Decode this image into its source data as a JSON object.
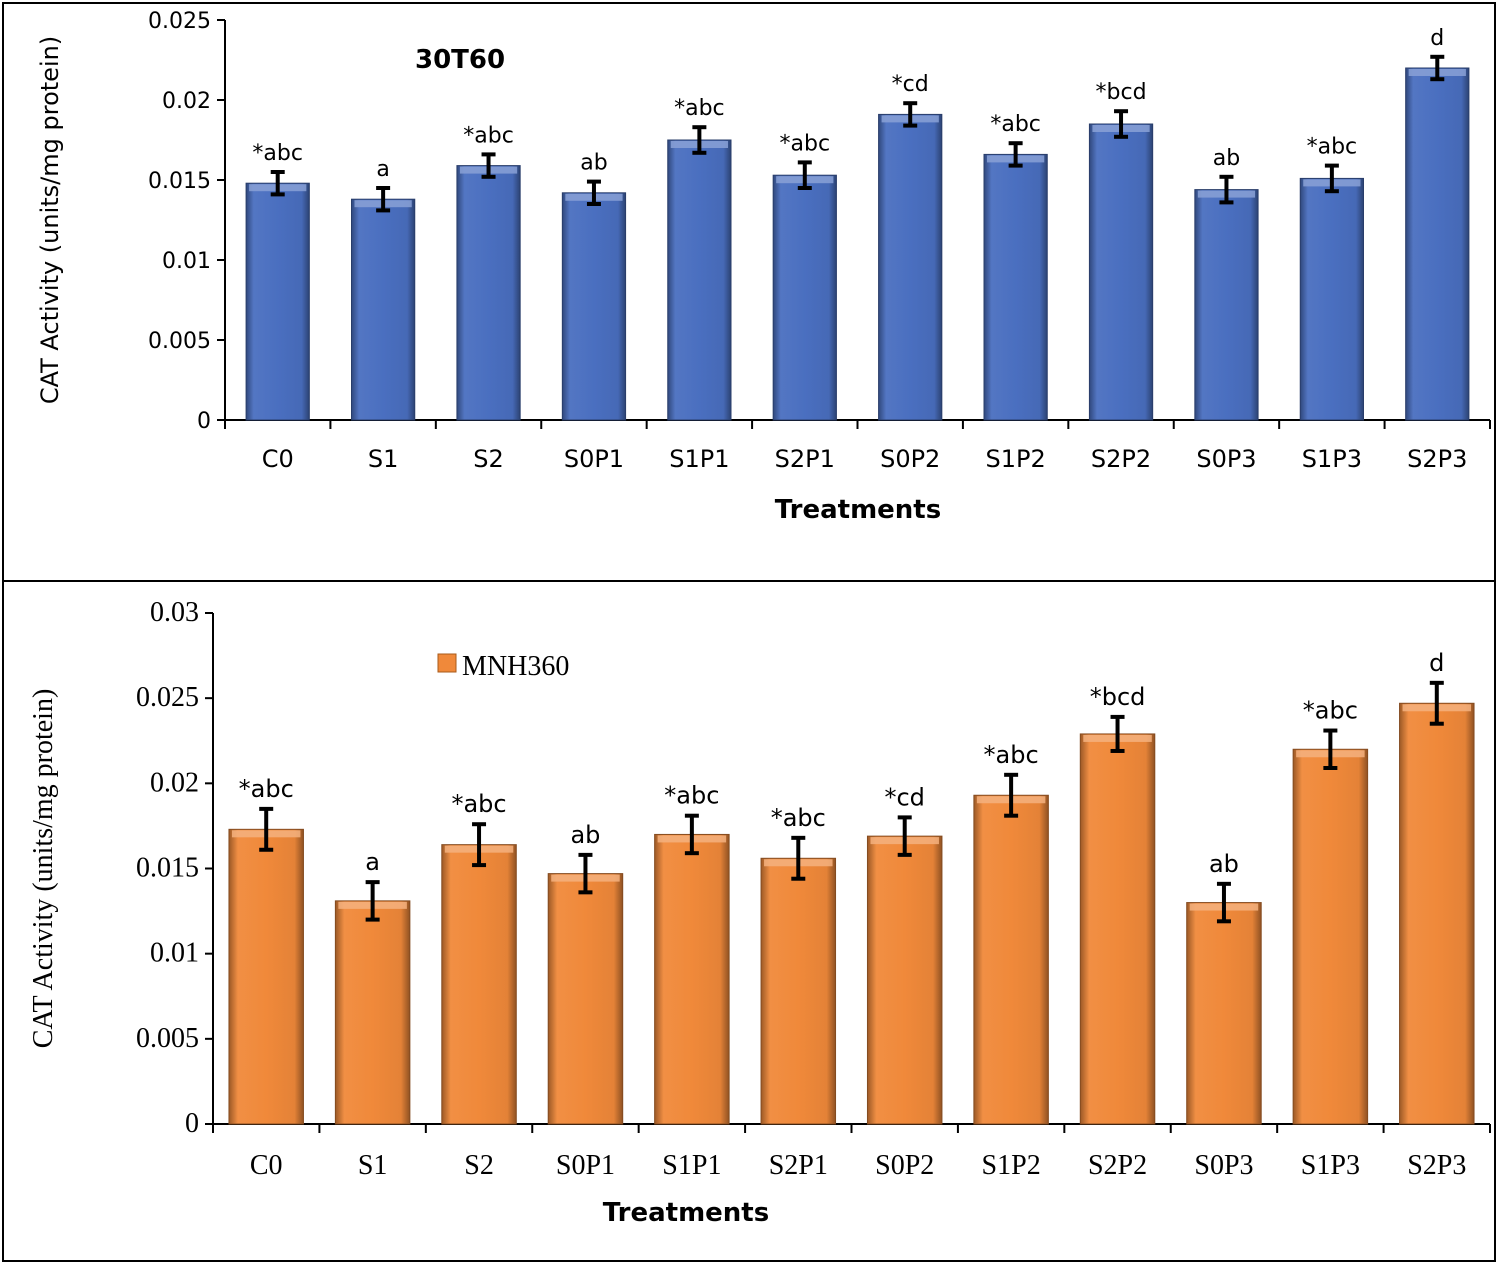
{
  "chart_data": [
    {
      "type": "bar",
      "title": "",
      "annotation": "30T60",
      "xlabel": "Treatments",
      "ylabel": "CAT Activity (units/mg protein)",
      "ylim": [
        0,
        0.025
      ],
      "yticks": [
        "0",
        "0.005",
        "0.01",
        "0.015",
        "0.02",
        "0.025"
      ],
      "categories": [
        "C0",
        "S1",
        "S2",
        "S0P1",
        "S1P1",
        "S2P1",
        "S0P2",
        "S1P2",
        "S2P2",
        "S0P3",
        "S1P3",
        "S2P3"
      ],
      "values": [
        0.0148,
        0.0138,
        0.0159,
        0.0142,
        0.0175,
        0.0153,
        0.0191,
        0.0166,
        0.0185,
        0.0144,
        0.0151,
        0.022
      ],
      "errors": [
        0.0007,
        0.0007,
        0.0007,
        0.0007,
        0.0008,
        0.0008,
        0.0007,
        0.0007,
        0.0008,
        0.0008,
        0.0008,
        0.0007
      ],
      "labels": [
        "*abc",
        "a",
        "*abc",
        "ab",
        "*abc",
        "*abc",
        "*cd",
        "*abc",
        "*bcd",
        "ab",
        "*abc",
        "d"
      ],
      "color": "#4a6fc0",
      "grid": false,
      "legend": "none"
    },
    {
      "type": "bar",
      "title": "",
      "legend_label": "MNH360",
      "legend": "top-left",
      "xlabel": "Treatments",
      "ylabel": "CAT Activity (units/mg protein)",
      "ylim": [
        0,
        0.03
      ],
      "yticks": [
        "0",
        "0.005",
        "0.01",
        "0.015",
        "0.02",
        "0.025",
        "0.03"
      ],
      "categories": [
        "C0",
        "S1",
        "S2",
        "S0P1",
        "S1P1",
        "S2P1",
        "S0P2",
        "S1P2",
        "S2P2",
        "S0P3",
        "S1P3",
        "S2P3"
      ],
      "values": [
        0.0173,
        0.0131,
        0.0164,
        0.0147,
        0.017,
        0.0156,
        0.0169,
        0.0193,
        0.0229,
        0.013,
        0.022,
        0.0247
      ],
      "errors": [
        0.0012,
        0.0011,
        0.0012,
        0.0011,
        0.0011,
        0.0012,
        0.0011,
        0.0012,
        0.001,
        0.0011,
        0.0011,
        0.0012
      ],
      "labels": [
        "*abc",
        "a",
        "*abc",
        "ab",
        "*abc",
        "*abc",
        "*cd",
        "*abc",
        "*bcd",
        "ab",
        "*abc",
        "d"
      ],
      "color": "#f0893a",
      "grid": false
    }
  ]
}
